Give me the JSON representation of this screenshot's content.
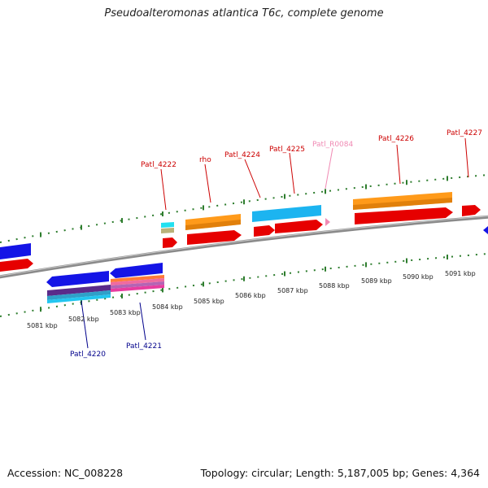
{
  "title": "Pseudoalteromonas atlantica T6c, complete genome",
  "footer": {
    "accession": "Accession: NC_008228",
    "topology": "Topology: circular; Length: 5,187,005 bp; Genes: 4,364"
  },
  "colors": {
    "backbone": "#8a8a8a",
    "tick": "#2e7d2e",
    "gene_label": "#cc0000",
    "rna_label": "#f08ab4",
    "reverse_label": "#00008b"
  },
  "scale_labels": [
    "5081 kbp",
    "5082 kbp",
    "5083 kbp",
    "5084 kbp",
    "5085 kbp",
    "5086 kbp",
    "5087 kbp",
    "5088 kbp",
    "5089 kbp",
    "5090 kbp",
    "5091 kbp"
  ],
  "gene_labels": [
    "Patl_4222",
    "rho",
    "Patl_4224",
    "Patl_4225",
    "Patl_R0084",
    "Patl_4226",
    "Patl_4227",
    "Patl_4220",
    "Patl_4221"
  ]
}
